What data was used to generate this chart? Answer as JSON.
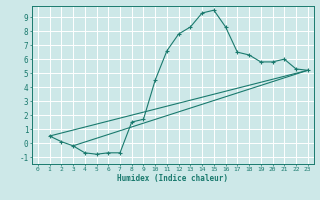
{
  "xlabel": "Humidex (Indice chaleur)",
  "xlim": [
    -0.5,
    23.5
  ],
  "ylim": [
    -1.5,
    9.8
  ],
  "xticks": [
    0,
    1,
    2,
    3,
    4,
    5,
    6,
    7,
    8,
    9,
    10,
    11,
    12,
    13,
    14,
    15,
    16,
    17,
    18,
    19,
    20,
    21,
    22,
    23
  ],
  "yticks": [
    -1,
    0,
    1,
    2,
    3,
    4,
    5,
    6,
    7,
    8,
    9
  ],
  "bg_color": "#cde8e8",
  "grid_color": "#b0d8d8",
  "line_color": "#1a7a6e",
  "curve1_x": [
    1,
    2,
    3,
    4,
    5,
    6,
    7,
    8,
    9,
    10,
    11,
    12,
    13,
    14,
    15,
    16,
    17,
    18,
    19,
    20,
    21,
    22,
    23
  ],
  "curve1_y": [
    0.5,
    0.1,
    -0.2,
    -0.7,
    -0.8,
    -0.7,
    -0.7,
    1.5,
    1.7,
    4.5,
    6.6,
    7.8,
    8.3,
    9.3,
    9.5,
    8.3,
    6.5,
    6.3,
    5.8,
    5.8,
    6.0,
    5.3,
    5.2
  ],
  "curve2_x": [
    1,
    23
  ],
  "curve2_y": [
    0.5,
    5.2
  ],
  "curve3_x": [
    3,
    23
  ],
  "curve3_y": [
    -0.2,
    5.2
  ]
}
